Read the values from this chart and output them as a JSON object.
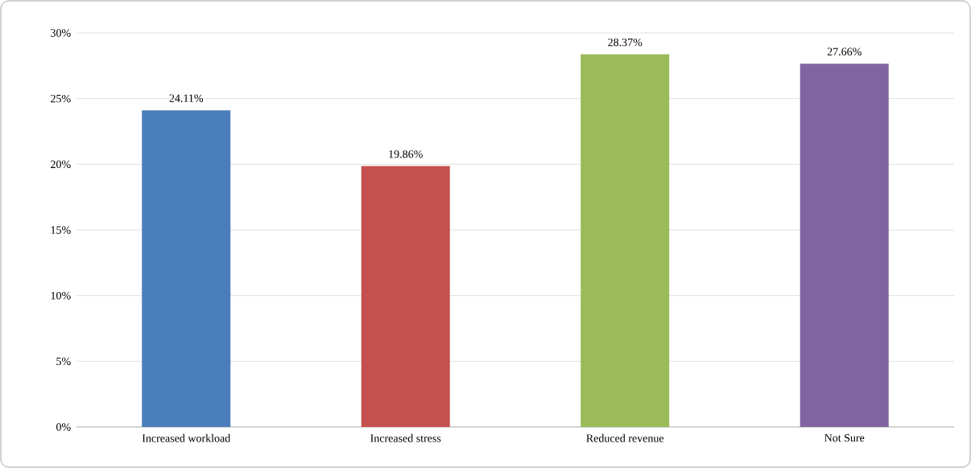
{
  "chart_data": {
    "type": "bar",
    "categories": [
      "Increased workload",
      "Increased stress",
      "Reduced revenue",
      "Not Sure"
    ],
    "values": [
      24.11,
      19.86,
      28.37,
      27.66
    ],
    "colors": [
      "#4a7ebb",
      "#c5504d",
      "#9bbb59",
      "#8064a2"
    ],
    "value_labels": [
      "24.11%",
      "19.86%",
      "28.37%",
      "27.66%"
    ],
    "ylim": [
      0,
      30
    ],
    "yticks": [
      {
        "value": 0,
        "label": "0%"
      },
      {
        "value": 5,
        "label": "5%"
      },
      {
        "value": 10,
        "label": "10%"
      },
      {
        "value": 15,
        "label": "15%"
      },
      {
        "value": 20,
        "label": "20%"
      },
      {
        "value": 25,
        "label": "25%"
      },
      {
        "value": 30,
        "label": "30%"
      }
    ],
    "grid": "y"
  }
}
